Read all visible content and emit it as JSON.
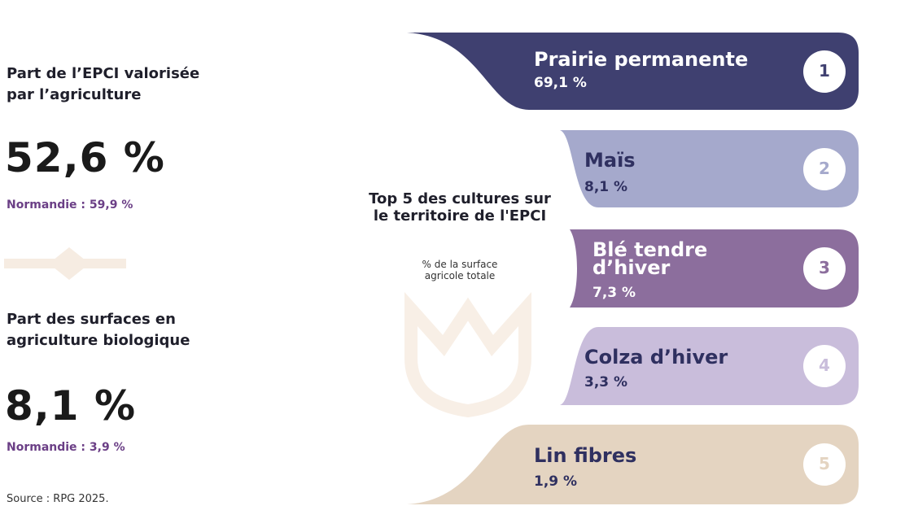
{
  "left": {
    "stats": [
      {
        "label": "Part de l’EPCI valorisée par l’agriculture",
        "value": "52,6 %",
        "comparison": "Normandie : 59,9 %"
      },
      {
        "label": "Part des surfaces en agriculture biologique",
        "value": "8,1 %",
        "comparison": "Normandie : 3,9 %"
      }
    ],
    "source": "Source : RPG 2025."
  },
  "top5": {
    "title": "Top 5 des cultures sur le territoire de l'EPCI",
    "subtitle": "% de la surface agricole totale",
    "items": [
      {
        "rank": "1",
        "name": "Prairie permanente",
        "share": "69,1 %"
      },
      {
        "rank": "2",
        "name": "Maïs",
        "share": "8,1 %"
      },
      {
        "rank": "3",
        "name": "Blé tendre d’hiver",
        "share": "7,3 %"
      },
      {
        "rank": "4",
        "name": "Colza d’hiver",
        "share": "3,3 %"
      },
      {
        "rank": "5",
        "name": "Lin fibres",
        "share": "1,9 %"
      }
    ]
  }
}
